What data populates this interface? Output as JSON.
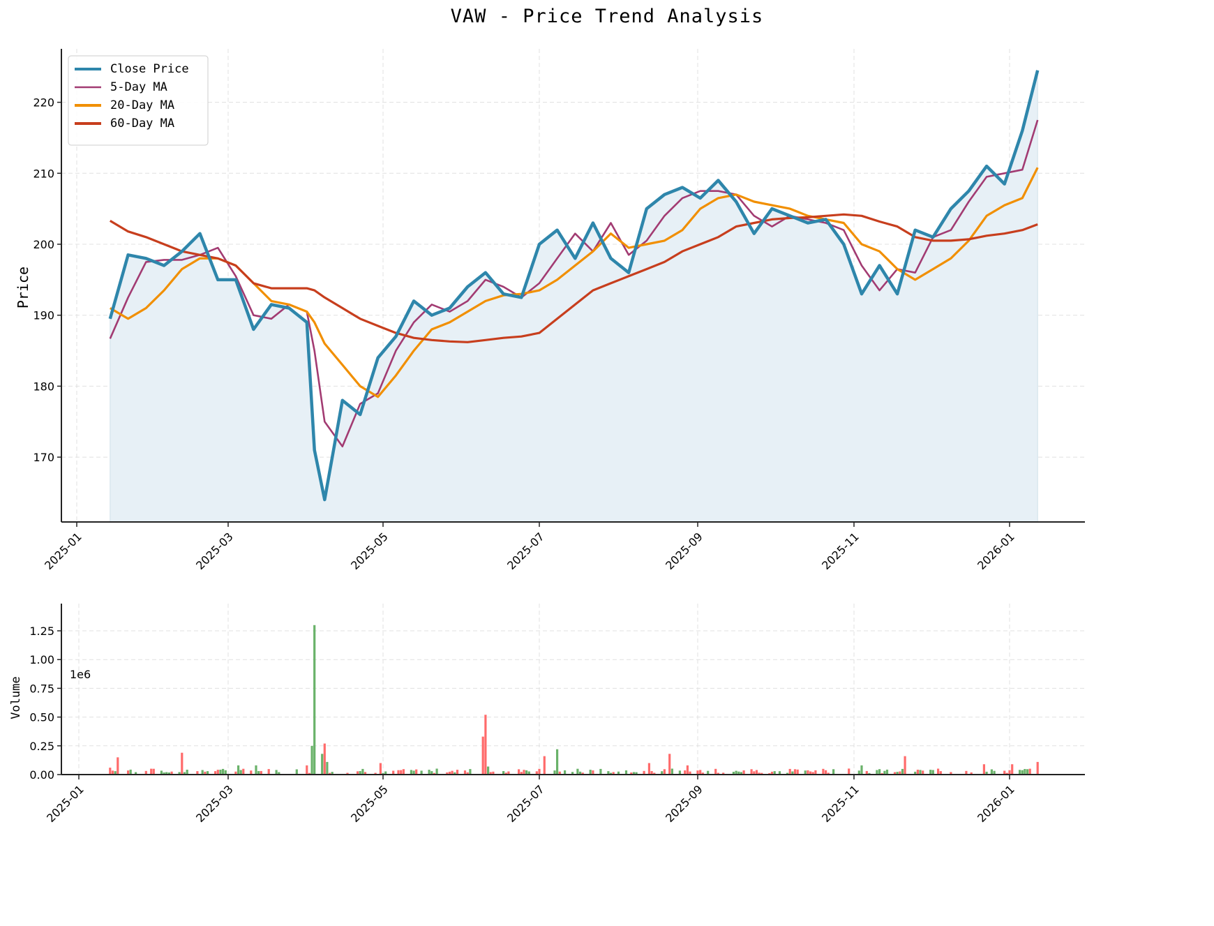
{
  "title": "VAW - Price Trend Analysis",
  "colors": {
    "close": "#2E86AB",
    "ma5": "#A23B72",
    "ma20": "#F18F01",
    "ma60": "#C73E1D",
    "fill": "#E7F0F6",
    "vol_up": "#FF6B6B",
    "vol_down": "#6AB26A",
    "grid": "#E0E0E0"
  },
  "legend": [
    {
      "key": "close",
      "label": "Close Price"
    },
    {
      "key": "ma5",
      "label": "5-Day MA"
    },
    {
      "key": "ma20",
      "label": "20-Day MA"
    },
    {
      "key": "ma60",
      "label": "60-Day MA"
    }
  ],
  "price_panel": {
    "ylabel": "Price",
    "yticks": [
      170,
      180,
      190,
      200,
      210,
      220
    ],
    "xticks": [
      "2025-01",
      "2025-03",
      "2025-05",
      "2025-07",
      "2025-09",
      "2025-11",
      "2026-01"
    ]
  },
  "volume_panel": {
    "ylabel": "Volume",
    "scale_label": "1e6",
    "yticks": [
      "0.00",
      "0.25",
      "0.50",
      "0.75",
      "1.00",
      "1.25"
    ],
    "xticks": [
      "2025-01",
      "2025-03",
      "2025-05",
      "2025-07",
      "2025-09",
      "2025-11",
      "2026-01"
    ]
  },
  "chart_data": [
    {
      "type": "line",
      "title": "VAW - Price Trend Analysis",
      "xlabel": "",
      "ylabel": "Price",
      "ylim": [
        161,
        228
      ],
      "xlim": [
        "2024-12-20",
        "2026-01-28"
      ],
      "grid": true,
      "legend_position": "upper left",
      "x": [
        "2025-01-14",
        "2025-01-21",
        "2025-01-28",
        "2025-02-04",
        "2025-02-11",
        "2025-02-18",
        "2025-02-25",
        "2025-03-04",
        "2025-03-11",
        "2025-03-18",
        "2025-03-25",
        "2025-04-01",
        "2025-04-04",
        "2025-04-08",
        "2025-04-15",
        "2025-04-22",
        "2025-04-29",
        "2025-05-06",
        "2025-05-13",
        "2025-05-20",
        "2025-05-27",
        "2025-06-03",
        "2025-06-10",
        "2025-06-17",
        "2025-06-24",
        "2025-07-01",
        "2025-07-08",
        "2025-07-15",
        "2025-07-22",
        "2025-07-29",
        "2025-08-05",
        "2025-08-12",
        "2025-08-19",
        "2025-08-26",
        "2025-09-02",
        "2025-09-09",
        "2025-09-16",
        "2025-09-23",
        "2025-09-30",
        "2025-10-07",
        "2025-10-14",
        "2025-10-21",
        "2025-10-28",
        "2025-11-04",
        "2025-11-11",
        "2025-11-18",
        "2025-11-25",
        "2025-12-02",
        "2025-12-09",
        "2025-12-16",
        "2025-12-23",
        "2025-12-30",
        "2026-01-06",
        "2026-01-12"
      ],
      "series": [
        {
          "name": "Close Price",
          "values": [
            189.5,
            198.5,
            198.0,
            197.0,
            199.0,
            201.5,
            195.0,
            195.0,
            188.0,
            191.5,
            191.0,
            189.0,
            171.0,
            164.0,
            178.0,
            176.0,
            184.0,
            187.0,
            192.0,
            190.0,
            191.0,
            194.0,
            196.0,
            193.0,
            192.5,
            200.0,
            202.0,
            198.0,
            203.0,
            198.0,
            196.0,
            205.0,
            207.0,
            208.0,
            206.5,
            209.0,
            206.0,
            201.5,
            205.0,
            204.0,
            203.0,
            203.5,
            200.0,
            193.0,
            197.0,
            193.0,
            202.0,
            201.0,
            205.0,
            207.5,
            211.0,
            208.5,
            216.0,
            224.5
          ]
        },
        {
          "name": "5-Day MA",
          "values": [
            186.7,
            192.5,
            197.5,
            197.8,
            197.8,
            198.5,
            199.5,
            195.5,
            190.0,
            189.5,
            191.5,
            190.5,
            185.0,
            175.0,
            171.5,
            177.5,
            179.0,
            185.0,
            189.0,
            191.5,
            190.5,
            192.0,
            195.0,
            194.0,
            192.5,
            194.5,
            198.0,
            201.5,
            199.0,
            203.0,
            198.5,
            200.5,
            204.0,
            206.5,
            207.5,
            207.5,
            207.0,
            204.0,
            202.5,
            204.0,
            203.5,
            203.0,
            202.0,
            197.0,
            193.5,
            196.5,
            196.0,
            201.0,
            202.0,
            206.0,
            209.5,
            210.0,
            210.5,
            217.5
          ]
        },
        {
          "name": "20-Day MA",
          "values": [
            191.0,
            189.5,
            191.0,
            193.5,
            196.5,
            198.0,
            198.0,
            197.0,
            194.5,
            192.0,
            191.5,
            190.5,
            189.0,
            186.0,
            183.0,
            180.0,
            178.5,
            181.5,
            185.0,
            188.0,
            189.0,
            190.5,
            192.0,
            192.8,
            193.0,
            193.5,
            195.0,
            197.0,
            199.0,
            201.5,
            199.5,
            200.0,
            200.5,
            202.0,
            205.0,
            206.5,
            207.0,
            206.0,
            205.5,
            205.0,
            204.0,
            203.5,
            203.0,
            200.0,
            199.0,
            196.5,
            195.0,
            196.5,
            198.0,
            200.5,
            204.0,
            205.5,
            206.5,
            210.8
          ]
        },
        {
          "name": "60-Day MA",
          "values": [
            203.3,
            201.8,
            201.0,
            200.0,
            199.0,
            198.5,
            198.0,
            197.0,
            194.5,
            193.8,
            193.8,
            193.8,
            193.5,
            192.5,
            191.0,
            189.5,
            188.5,
            187.5,
            186.8,
            186.5,
            186.3,
            186.2,
            186.5,
            186.8,
            187.0,
            187.5,
            189.5,
            191.5,
            193.5,
            194.5,
            195.5,
            196.5,
            197.5,
            199.0,
            200.0,
            201.0,
            202.5,
            203.0,
            203.5,
            203.7,
            203.8,
            204.0,
            204.2,
            204.0,
            203.2,
            202.5,
            201.0,
            200.5,
            200.5,
            200.7,
            201.2,
            201.5,
            202.0,
            202.8
          ]
        }
      ]
    },
    {
      "type": "bar",
      "title": "",
      "xlabel": "",
      "ylabel": "Volume",
      "ylim": [
        0,
        1.36
      ],
      "y_scale": "1e6",
      "grid": true,
      "x": [
        "2025-01-14",
        "2025-01-17",
        "2025-02-11",
        "2025-03-05",
        "2025-03-12",
        "2025-04-01",
        "2025-04-03",
        "2025-04-04",
        "2025-04-07",
        "2025-04-08",
        "2025-04-09",
        "2025-04-30",
        "2025-06-09",
        "2025-06-10",
        "2025-06-11",
        "2025-07-01",
        "2025-07-03",
        "2025-07-08",
        "2025-08-13",
        "2025-08-21",
        "2025-08-28",
        "2025-11-04",
        "2025-11-21",
        "2025-12-22",
        "2026-01-02",
        "2026-01-12"
      ],
      "values": [
        0.06,
        0.15,
        0.19,
        0.08,
        0.08,
        0.08,
        0.25,
        1.3,
        0.18,
        0.27,
        0.11,
        0.1,
        0.33,
        0.52,
        0.07,
        0.05,
        0.16,
        0.22,
        0.1,
        0.18,
        0.08,
        0.08,
        0.16,
        0.09,
        0.09,
        0.11
      ],
      "direction": [
        "up",
        "up",
        "up",
        "down",
        "down",
        "up",
        "down",
        "down",
        "down",
        "up",
        "down",
        "up",
        "up",
        "up",
        "down",
        "up",
        "up",
        "down",
        "up",
        "up",
        "up",
        "down",
        "up",
        "up",
        "up",
        "up"
      ]
    }
  ]
}
